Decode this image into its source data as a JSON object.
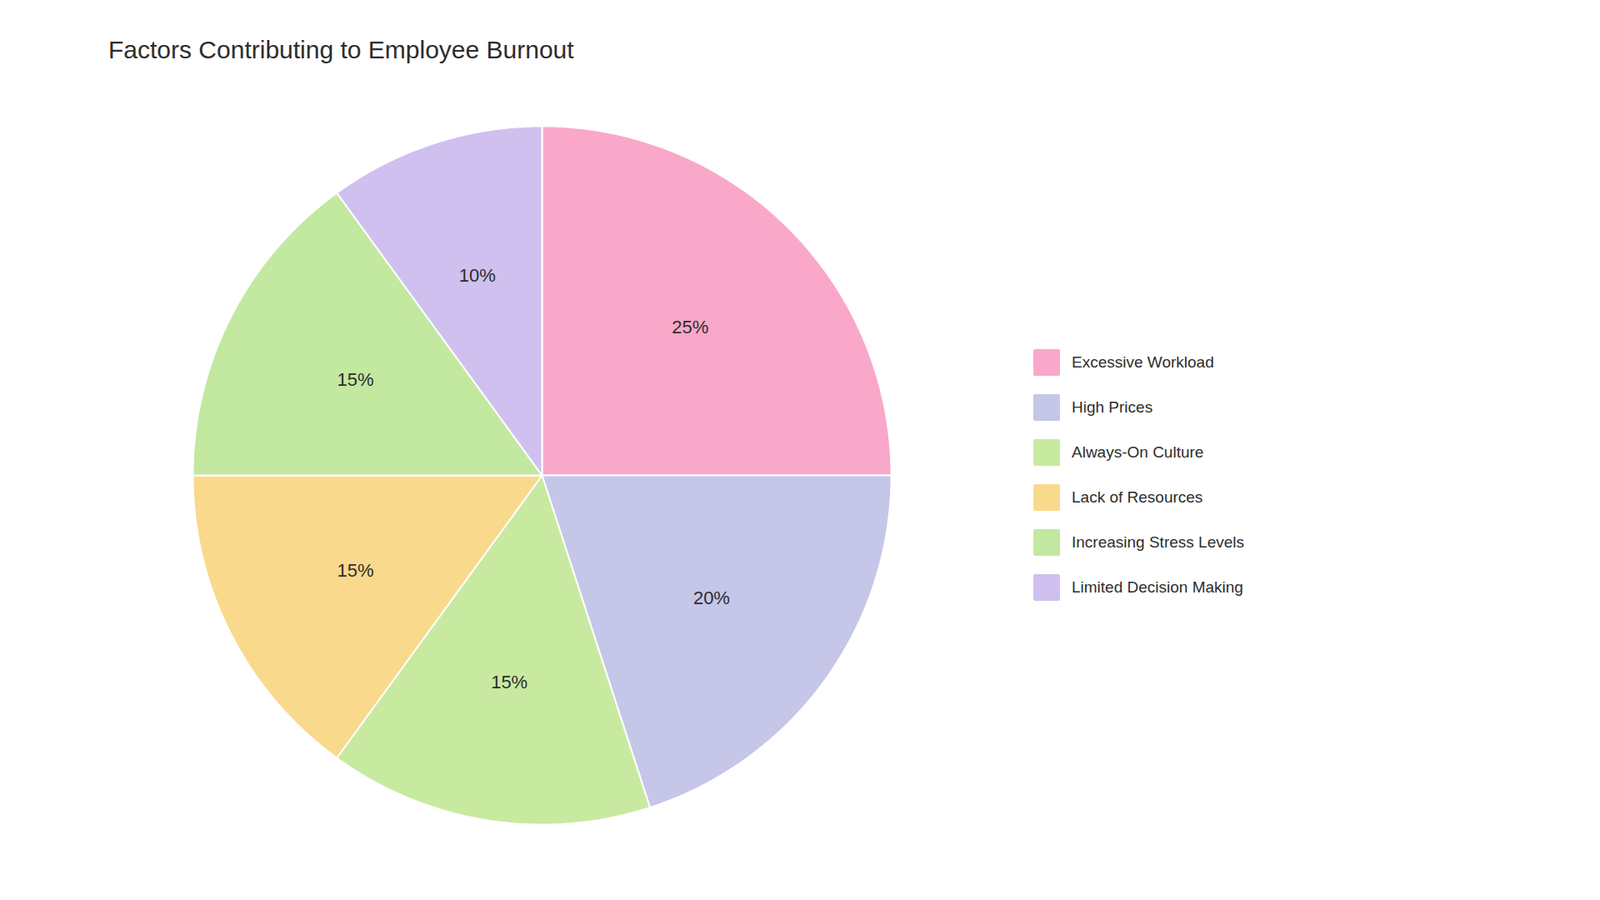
{
  "chart_data": {
    "type": "pie",
    "title": "Factors Contributing to Employee Burnout",
    "categories": [
      "Excessive Workload",
      "High Prices",
      "Always-On Culture",
      "Lack of Resources",
      "Increasing Stress Levels",
      "Limited Decision Making"
    ],
    "values": [
      25,
      20,
      15,
      15,
      15,
      10
    ],
    "value_labels": [
      "25%",
      "20%",
      "15%",
      "15%",
      "15%",
      "10%"
    ],
    "colors": [
      "#F9A8C9",
      "#C5C6E8",
      "#C8EAA0",
      "#F9D98C",
      "#C3E8A0",
      "#CFC0F0"
    ],
    "data_labels": true,
    "legend": "right"
  }
}
